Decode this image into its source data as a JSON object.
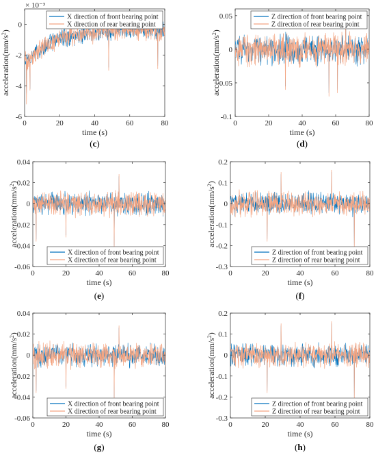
{
  "colors": {
    "front": "#0072BD",
    "rear": "#F4A582",
    "axis": "#262626"
  },
  "chart_data": [
    {
      "id": "c",
      "caption": "c",
      "type": "line",
      "xlabel": "time (s)",
      "ylabel": "acceleration(mm/s²)",
      "xlim": [
        0,
        80
      ],
      "ylim": [
        -0.006,
        0.001
      ],
      "xticks": [
        "0",
        "20",
        "40",
        "60",
        "80"
      ],
      "yticks": [
        "-6",
        "-4",
        "-2",
        "0"
      ],
      "ytick_values": [
        -0.006,
        -0.004,
        -0.002,
        0
      ],
      "exponent": "× 10⁻³",
      "legend_position": "top-right",
      "series": [
        {
          "name": "X direction of front bearing point",
          "trend": [
            [
              0,
              -0.0025
            ],
            [
              5,
              -0.002
            ],
            [
              12,
              -0.0014
            ],
            [
              20,
              -0.0009
            ],
            [
              35,
              -0.0006
            ],
            [
              50,
              -0.0004
            ],
            [
              80,
              -0.0004
            ]
          ],
          "noise": 0.00055,
          "spikes": [
            [
              1,
              -0.0045
            ],
            [
              3,
              -0.0042
            ],
            [
              48,
              -0.0028
            ],
            [
              76,
              -0.0027
            ]
          ]
        },
        {
          "name": "X direction of rear bearing point",
          "trend": [
            [
              0,
              -0.0025
            ],
            [
              5,
              -0.002
            ],
            [
              12,
              -0.0014
            ],
            [
              20,
              -0.0009
            ],
            [
              35,
              -0.0006
            ],
            [
              50,
              -0.0004
            ],
            [
              80,
              -0.0004
            ]
          ],
          "noise": 0.0006,
          "spikes": [
            [
              1,
              -0.0052
            ],
            [
              3,
              -0.0043
            ],
            [
              48,
              -0.003
            ],
            [
              76,
              -0.0029
            ]
          ]
        }
      ]
    },
    {
      "id": "d",
      "caption": "d",
      "type": "line",
      "xlabel": "time (s)",
      "ylabel": "acceleration(mm/s²)",
      "xlim": [
        0,
        80
      ],
      "ylim": [
        -0.1,
        0.06
      ],
      "xticks": [
        "0",
        "20",
        "40",
        "60",
        "80"
      ],
      "yticks": [
        "-0.1",
        "-0.05",
        "0",
        "0.05"
      ],
      "ytick_values": [
        -0.1,
        -0.05,
        0,
        0.05
      ],
      "legend_position": "top-right",
      "series": [
        {
          "name": "Z direction of front bearing point",
          "trend": [
            [
              0,
              0
            ],
            [
              80,
              0
            ]
          ],
          "noise": 0.02,
          "spikes": [
            [
              30,
              -0.055
            ],
            [
              56,
              -0.065
            ],
            [
              61,
              -0.06
            ],
            [
              66,
              0.05
            ]
          ]
        },
        {
          "name": "Z direction of rear bearing point",
          "trend": [
            [
              0,
              0
            ],
            [
              80,
              0
            ]
          ],
          "noise": 0.022,
          "spikes": [
            [
              30,
              -0.06
            ],
            [
              56,
              -0.07
            ],
            [
              61,
              -0.065
            ],
            [
              66,
              0.055
            ]
          ]
        }
      ]
    },
    {
      "id": "e",
      "caption": "e",
      "type": "line",
      "xlabel": "time (s)",
      "ylabel": "acceleration(mm/s²)",
      "xlim": [
        0,
        80
      ],
      "ylim": [
        -0.06,
        0.04
      ],
      "xticks": [
        "0",
        "20",
        "40",
        "60",
        "80"
      ],
      "yticks": [
        "-0.06",
        "-0.04",
        "-0.02",
        "0",
        "0.02",
        "0.04"
      ],
      "ytick_values": [
        -0.06,
        -0.04,
        -0.02,
        0,
        0.02,
        0.04
      ],
      "legend_position": "bottom-right",
      "series": [
        {
          "name": "X direction of front bearing point",
          "trend": [
            [
              0,
              0
            ],
            [
              80,
              0
            ]
          ],
          "noise": 0.01,
          "spikes": [
            [
              2,
              -0.034
            ],
            [
              49,
              -0.04
            ],
            [
              52,
              0.026
            ],
            [
              20,
              -0.03
            ]
          ]
        },
        {
          "name": "X direction of rear bearing point",
          "trend": [
            [
              0,
              0
            ],
            [
              80,
              0
            ]
          ],
          "noise": 0.011,
          "spikes": [
            [
              2,
              -0.036
            ],
            [
              49,
              -0.042
            ],
            [
              52,
              0.028
            ],
            [
              20,
              -0.032
            ]
          ]
        }
      ]
    },
    {
      "id": "f",
      "caption": "f",
      "type": "line",
      "xlabel": "time (s)",
      "ylabel": "acceleration(mm/s²)",
      "xlim": [
        0,
        80
      ],
      "ylim": [
        -0.3,
        0.2
      ],
      "xticks": [
        "0",
        "20",
        "40",
        "60",
        "80"
      ],
      "yticks": [
        "-0.3",
        "-0.2",
        "-0.1",
        "0",
        "0.1",
        "0.2"
      ],
      "ytick_values": [
        -0.3,
        -0.2,
        -0.1,
        0,
        0.1,
        0.2
      ],
      "legend_position": "bottom-right",
      "series": [
        {
          "name": "Z direction of front bearing point",
          "trend": [
            [
              0,
              0
            ],
            [
              80,
              0
            ]
          ],
          "noise": 0.05,
          "spikes": [
            [
              21,
              -0.17
            ],
            [
              71,
              -0.2
            ],
            [
              58,
              0.15
            ],
            [
              29,
              0.14
            ]
          ]
        },
        {
          "name": "Z direction of rear bearing point",
          "trend": [
            [
              0,
              0
            ],
            [
              80,
              0
            ]
          ],
          "noise": 0.055,
          "spikes": [
            [
              21,
              -0.18
            ],
            [
              71,
              -0.21
            ],
            [
              58,
              0.16
            ],
            [
              29,
              0.15
            ]
          ]
        }
      ]
    },
    {
      "id": "g",
      "caption": "g",
      "type": "line",
      "xlabel": "time (s)",
      "ylabel": "acceleration(mm/s²)",
      "xlim": [
        0,
        80
      ],
      "ylim": [
        -0.06,
        0.04
      ],
      "xticks": [
        "0",
        "20",
        "40",
        "60",
        "80"
      ],
      "yticks": [
        "-0.06",
        "-0.04",
        "-0.02",
        "0",
        "0.02",
        "0.04"
      ],
      "ytick_values": [
        -0.06,
        -0.04,
        -0.02,
        0,
        0.02,
        0.04
      ],
      "legend_position": "bottom-right",
      "series": [
        {
          "name": "X direction of front bearing point",
          "trend": [
            [
              0,
              0
            ],
            [
              80,
              0
            ]
          ],
          "noise": 0.01,
          "spikes": [
            [
              2,
              -0.034
            ],
            [
              49,
              -0.04
            ],
            [
              52,
              0.026
            ],
            [
              20,
              -0.03
            ]
          ]
        },
        {
          "name": "X direction of rear bearing point",
          "trend": [
            [
              0,
              0
            ],
            [
              80,
              0
            ]
          ],
          "noise": 0.011,
          "spikes": [
            [
              2,
              -0.036
            ],
            [
              49,
              -0.042
            ],
            [
              52,
              0.028
            ],
            [
              20,
              -0.032
            ]
          ]
        }
      ]
    },
    {
      "id": "h",
      "caption": "h",
      "type": "line",
      "xlabel": "time (s)",
      "ylabel": "acceleration(mm/s²)",
      "xlim": [
        0,
        80
      ],
      "ylim": [
        -0.3,
        0.2
      ],
      "xticks": [
        "0",
        "20",
        "40",
        "60",
        "80"
      ],
      "yticks": [
        "-0.3",
        "-0.2",
        "-0.1",
        "0",
        "0.1",
        "0.2"
      ],
      "ytick_values": [
        -0.3,
        -0.2,
        -0.1,
        0,
        0.1,
        0.2
      ],
      "legend_position": "bottom-right",
      "series": [
        {
          "name": "Z direction of front bearing point",
          "trend": [
            [
              0,
              0
            ],
            [
              80,
              0
            ]
          ],
          "noise": 0.05,
          "spikes": [
            [
              21,
              -0.17
            ],
            [
              71,
              -0.2
            ],
            [
              58,
              0.15
            ],
            [
              29,
              0.14
            ]
          ]
        },
        {
          "name": "Z direction of rear bearing point",
          "trend": [
            [
              0,
              0
            ],
            [
              80,
              0
            ]
          ],
          "noise": 0.055,
          "spikes": [
            [
              21,
              -0.18
            ],
            [
              71,
              -0.21
            ],
            [
              58,
              0.16
            ],
            [
              29,
              0.15
            ]
          ]
        }
      ]
    }
  ]
}
